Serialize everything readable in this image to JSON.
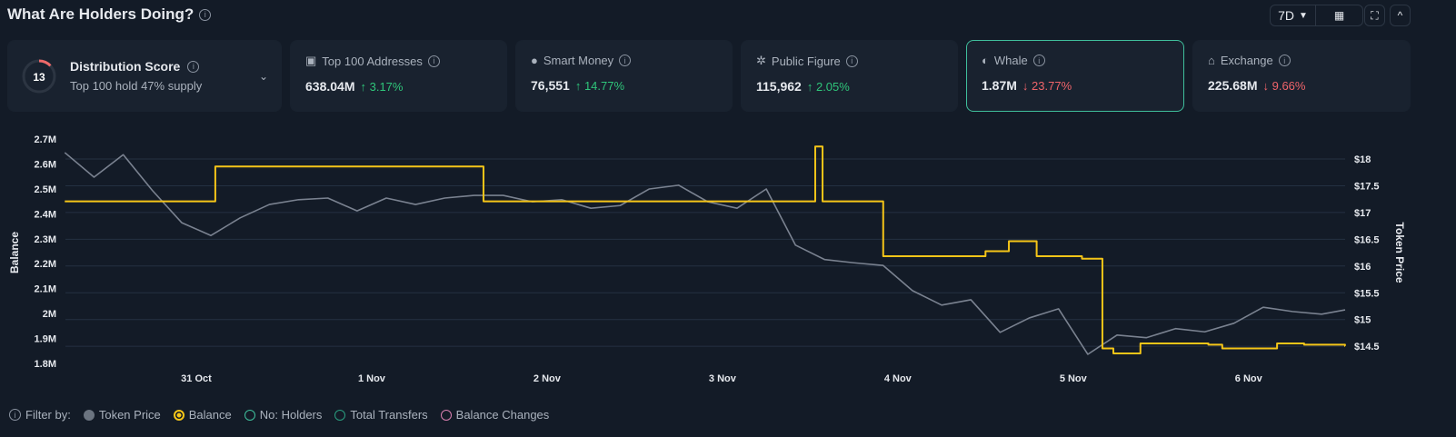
{
  "header": {
    "title": "What Are Holders Doing?",
    "timeframe": "7D"
  },
  "cards": [
    {
      "label": "Distribution Score",
      "subtitle": "Top 100 hold 47% supply",
      "score": "13",
      "score_fraction": 0.13
    },
    {
      "label": "Top 100 Addresses",
      "icon": "wallet-icon",
      "value": "638.04M",
      "change": "3.17%",
      "direction": "up"
    },
    {
      "label": "Smart Money",
      "icon": "smart-money-icon",
      "value": "76,551",
      "change": "14.77%",
      "direction": "up"
    },
    {
      "label": "Public Figure",
      "icon": "public-figure-icon",
      "value": "115,962",
      "change": "2.05%",
      "direction": "up"
    },
    {
      "label": "Whale",
      "icon": "whale-icon",
      "value": "1.87M",
      "change": "23.77%",
      "direction": "down",
      "selected": true
    },
    {
      "label": "Exchange",
      "icon": "bank-icon",
      "value": "225.68M",
      "change": "9.66%",
      "direction": "down"
    }
  ],
  "filters": {
    "label": "Filter by:",
    "items": [
      {
        "label": "Token Price",
        "color": "#6b7480",
        "active": true
      },
      {
        "label": "Balance",
        "color": "#f5c518",
        "active": true
      },
      {
        "label": "No: Holders",
        "color": "#3fbf9c",
        "active": false
      },
      {
        "label": "Total Transfers",
        "color": "#2a9d7f",
        "active": false
      },
      {
        "label": "Balance Changes",
        "color": "#d97fb0",
        "active": false
      }
    ]
  },
  "chart_data": {
    "type": "line",
    "ylabel_left": "Balance",
    "ylabel_right": "Token Price",
    "ylim_left": [
      1.75,
      2.75
    ],
    "ylim_right": [
      14.2,
      18.6
    ],
    "left_ticks": [
      "1.8M",
      "1.9M",
      "2M",
      "2.1M",
      "2.2M",
      "2.3M",
      "2.4M",
      "2.5M",
      "2.6M",
      "2.7M"
    ],
    "right_ticks": [
      "$14.5",
      "$15",
      "$15.5",
      "$16",
      "$16.5",
      "$17",
      "$17.5",
      "$18"
    ],
    "x_ticks": [
      "31 Oct",
      "1 Nov",
      "2 Nov",
      "3 Nov",
      "4 Nov",
      "5 Nov",
      "6 Nov"
    ],
    "grid": "horizontal",
    "series": [
      {
        "name": "Token Price",
        "axis": "right",
        "color": "#7a8290",
        "step": false,
        "x": [
          "30 Oct 06:00",
          "30 Oct 10:00",
          "30 Oct 14:00",
          "30 Oct 18:00",
          "30 Oct 22:00",
          "31 Oct 02:00",
          "31 Oct 06:00",
          "31 Oct 10:00",
          "31 Oct 14:00",
          "31 Oct 18:00",
          "31 Oct 22:00",
          "1 Nov 02:00",
          "1 Nov 06:00",
          "1 Nov 10:00",
          "1 Nov 14:00",
          "1 Nov 18:00",
          "1 Nov 22:00",
          "2 Nov 02:00",
          "2 Nov 06:00",
          "2 Nov 10:00",
          "2 Nov 14:00",
          "2 Nov 18:00",
          "2 Nov 22:00",
          "3 Nov 02:00",
          "3 Nov 06:00",
          "3 Nov 10:00",
          "3 Nov 14:00",
          "3 Nov 18:00",
          "3 Nov 22:00",
          "4 Nov 02:00",
          "4 Nov 06:00",
          "4 Nov 10:00",
          "4 Nov 14:00",
          "4 Nov 18:00",
          "4 Nov 22:00",
          "5 Nov 02:00",
          "5 Nov 06:00",
          "5 Nov 10:00",
          "5 Nov 14:00",
          "5 Nov 18:00",
          "5 Nov 22:00",
          "6 Nov 02:00",
          "6 Nov 06:00",
          "6 Nov 10:00",
          "6 Nov 14:00"
        ],
        "values": [
          18.12,
          17.66,
          18.08,
          17.41,
          16.81,
          16.57,
          16.9,
          17.15,
          17.24,
          17.27,
          17.03,
          17.27,
          17.15,
          17.27,
          17.32,
          17.32,
          17.2,
          17.24,
          17.08,
          17.13,
          17.44,
          17.51,
          17.2,
          17.08,
          17.44,
          16.39,
          16.12,
          16.06,
          16.01,
          15.54,
          15.27,
          15.37,
          14.76,
          15.03,
          15.2,
          14.35,
          14.71,
          14.66,
          14.83,
          14.77,
          14.93,
          15.23,
          15.15,
          15.1,
          15.18
        ]
      },
      {
        "name": "Balance",
        "axis": "left",
        "color": "#f5c518",
        "step": true,
        "x": [
          "30 Oct 06:00",
          "31 Oct 02:36",
          "1 Nov 15:18",
          "3 Nov 12:42",
          "3 Nov 13:42",
          "3 Nov 22:00",
          "4 Nov 12:00",
          "4 Nov 15:12",
          "4 Nov 19:00",
          "5 Nov 01:12",
          "5 Nov 04:00",
          "5 Nov 05:30",
          "5 Nov 09:12",
          "5 Nov 18:30",
          "5 Nov 20:24",
          "6 Nov 03:54",
          "6 Nov 07:36",
          "6 Nov 13:12"
        ],
        "values": [
          2.45,
          2.59,
          2.45,
          2.67,
          2.45,
          2.23,
          2.25,
          2.29,
          2.23,
          2.22,
          1.86,
          1.84,
          1.88,
          1.875,
          1.86,
          1.88,
          1.875,
          1.87
        ]
      }
    ]
  }
}
